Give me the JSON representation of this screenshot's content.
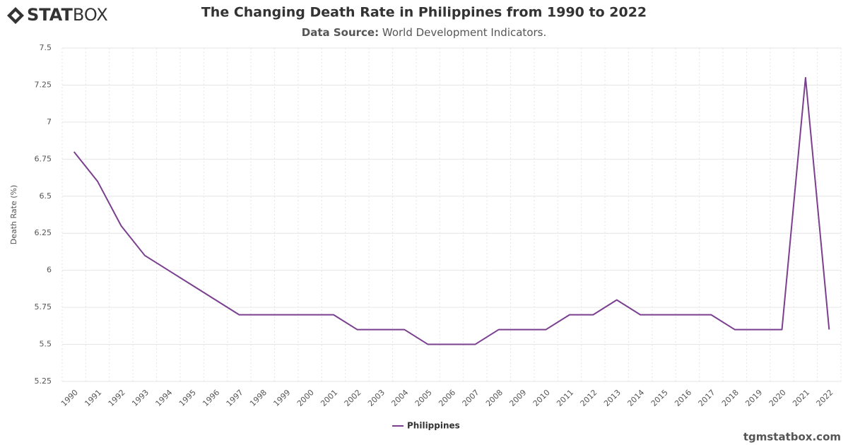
{
  "brand": {
    "bold": "STAT",
    "light": "BOX"
  },
  "footer": "tgmstatbox.com",
  "chart_data": {
    "type": "line",
    "title": "The Changing Death Rate in Philippines from 1990 to 2022",
    "source_label": "Data Source:",
    "source": "World Development Indicators.",
    "y_label": "Death Rate (%)",
    "categories": [
      "1990",
      "1991",
      "1992",
      "1993",
      "1994",
      "1995",
      "1996",
      "1997",
      "1998",
      "1999",
      "2000",
      "2001",
      "2002",
      "2003",
      "2004",
      "2005",
      "2006",
      "2007",
      "2008",
      "2009",
      "2010",
      "2011",
      "2012",
      "2013",
      "2014",
      "2015",
      "2016",
      "2017",
      "2018",
      "2019",
      "2020",
      "2021",
      "2022"
    ],
    "series": [
      {
        "name": "Philippines",
        "color": "#7b3f8f",
        "values": [
          6.8,
          6.6,
          6.3,
          6.1,
          6.0,
          5.9,
          5.8,
          5.7,
          5.7,
          5.7,
          5.7,
          5.7,
          5.6,
          5.6,
          5.6,
          5.5,
          5.5,
          5.5,
          5.6,
          5.6,
          5.6,
          5.7,
          5.7,
          5.8,
          5.7,
          5.7,
          5.7,
          5.7,
          5.6,
          5.6,
          5.6,
          7.3,
          5.6
        ]
      }
    ],
    "ylim": [
      5.25,
      7.5
    ],
    "yticks": [
      5.25,
      5.5,
      5.75,
      6,
      6.25,
      6.5,
      6.75,
      7,
      7.25,
      7.5
    ],
    "grid": true
  }
}
